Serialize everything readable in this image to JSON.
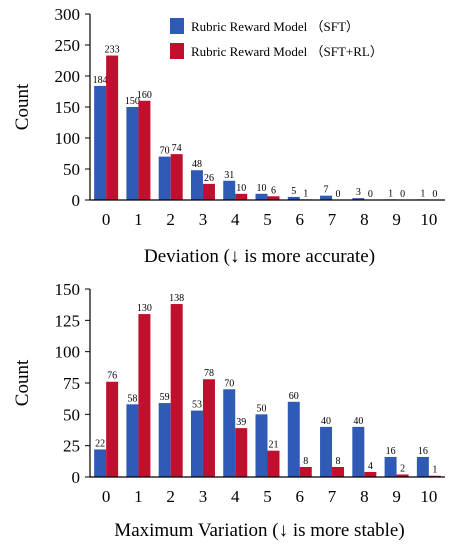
{
  "colors": {
    "sft": "#2f5bb7",
    "sft_rl": "#c0102e",
    "axis": "#000000"
  },
  "legend": {
    "placement": "top-right",
    "items": [
      {
        "label": "Rubric Reward Model （SFT）",
        "color": "#2f5bb7"
      },
      {
        "label": "Rubric Reward Model （SFT+RL）",
        "color": "#c0102e"
      }
    ]
  },
  "chart_data": [
    {
      "type": "bar",
      "xlabel": "Deviation (↓ is more accurate)",
      "ylabel": "Count",
      "ylim": [
        0,
        300
      ],
      "yticks": [
        0,
        50,
        100,
        150,
        200,
        250,
        300
      ],
      "categories": [
        "0",
        "1",
        "2",
        "3",
        "4",
        "5",
        "6",
        "7",
        "8",
        "9",
        "10"
      ],
      "series": [
        {
          "name": "Rubric Reward Model （SFT）",
          "values": [
            184,
            150,
            70,
            48,
            31,
            10,
            5,
            7,
            3,
            1,
            1
          ]
        },
        {
          "name": "Rubric Reward Model （SFT+RL）",
          "values": [
            233,
            160,
            74,
            26,
            10,
            6,
            1,
            0,
            0,
            0,
            0
          ]
        }
      ]
    },
    {
      "type": "bar",
      "xlabel": "Maximum Variation (↓ is more stable)",
      "ylabel": "Count",
      "ylim": [
        0,
        150
      ],
      "yticks": [
        0,
        25,
        50,
        75,
        100,
        125,
        150
      ],
      "categories": [
        "0",
        "1",
        "2",
        "3",
        "4",
        "5",
        "6",
        "7",
        "8",
        "9",
        "10"
      ],
      "series": [
        {
          "name": "Rubric Reward Model （SFT）",
          "values": [
            22,
            58,
            59,
            53,
            70,
            50,
            60,
            40,
            40,
            16,
            16
          ]
        },
        {
          "name": "Rubric Reward Model （SFT+RL）",
          "values": [
            76,
            130,
            138,
            78,
            39,
            21,
            8,
            8,
            4,
            2,
            1
          ]
        }
      ]
    }
  ]
}
